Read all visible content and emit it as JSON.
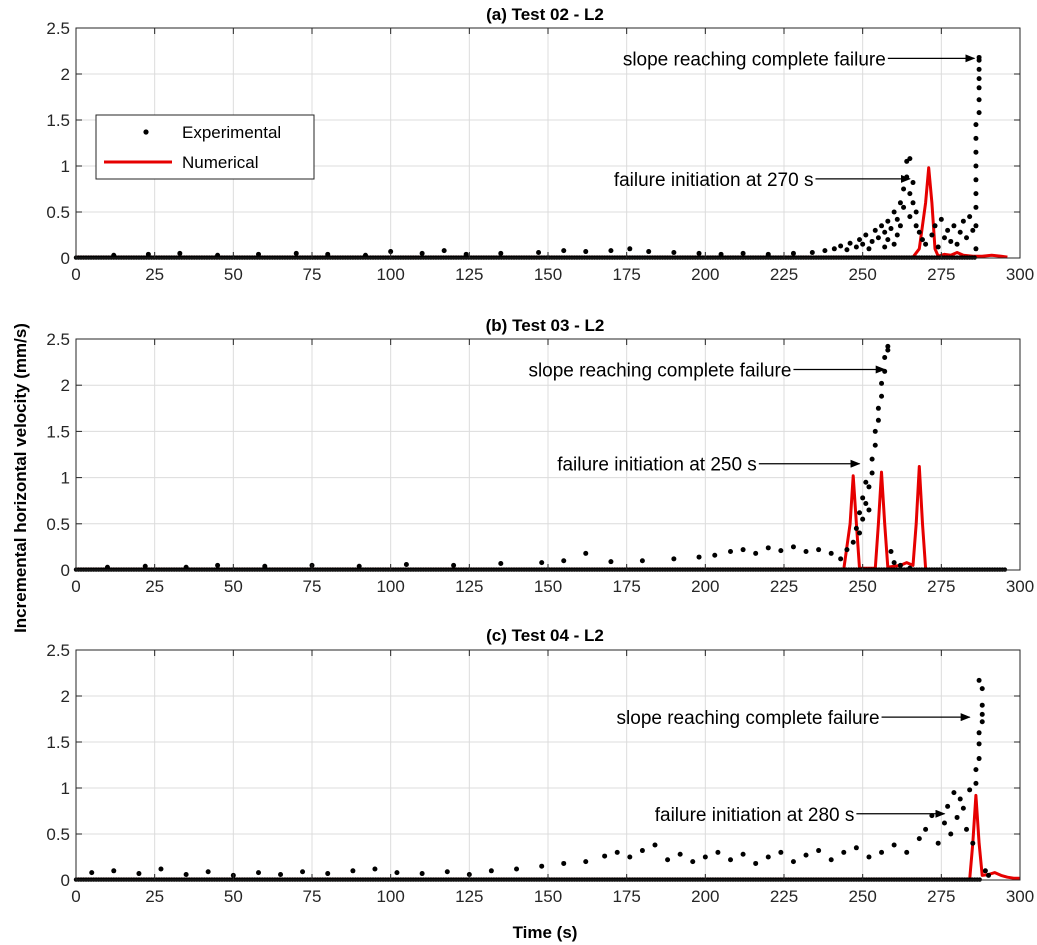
{
  "figure": {
    "ylabel": "Incremental horizontal velocity (mm/s)",
    "xlabel": "Time (s)"
  },
  "legend": {
    "experimental": "Experimental",
    "numerical": "Numerical",
    "placement": "upper-left of panel (a)"
  },
  "colors": {
    "experimental": "#000000",
    "numerical": "#e60000",
    "grid": "#dcdcdc"
  },
  "chart_data": [
    {
      "type": "scatter+line",
      "title": "(a) Test 02 - L2",
      "xlim": [
        0,
        300
      ],
      "ylim": [
        0,
        2.5
      ],
      "xticks": [
        0,
        25,
        50,
        75,
        100,
        125,
        150,
        175,
        200,
        225,
        250,
        275,
        300
      ],
      "yticks": [
        0,
        0.5,
        1,
        1.5,
        2,
        2.5
      ],
      "grid": true,
      "experimental_baseline_end": 286,
      "experimental_points": [
        [
          12,
          0.03
        ],
        [
          23,
          0.04
        ],
        [
          33,
          0.05
        ],
        [
          45,
          0.03
        ],
        [
          58,
          0.04
        ],
        [
          70,
          0.05
        ],
        [
          80,
          0.04
        ],
        [
          92,
          0.03
        ],
        [
          100,
          0.07
        ],
        [
          110,
          0.05
        ],
        [
          117,
          0.08
        ],
        [
          124,
          0.04
        ],
        [
          135,
          0.05
        ],
        [
          147,
          0.06
        ],
        [
          155,
          0.08
        ],
        [
          162,
          0.07
        ],
        [
          170,
          0.08
        ],
        [
          176,
          0.1
        ],
        [
          182,
          0.07
        ],
        [
          190,
          0.06
        ],
        [
          198,
          0.05
        ],
        [
          205,
          0.04
        ],
        [
          212,
          0.05
        ],
        [
          220,
          0.04
        ],
        [
          228,
          0.05
        ],
        [
          234,
          0.06
        ],
        [
          238,
          0.08
        ],
        [
          241,
          0.1
        ],
        [
          243,
          0.13
        ],
        [
          245,
          0.09
        ],
        [
          246,
          0.16
        ],
        [
          248,
          0.12
        ],
        [
          249,
          0.2
        ],
        [
          250,
          0.15
        ],
        [
          251,
          0.25
        ],
        [
          252,
          0.1
        ],
        [
          253,
          0.18
        ],
        [
          254,
          0.3
        ],
        [
          255,
          0.22
        ],
        [
          256,
          0.35
        ],
        [
          257,
          0.12
        ],
        [
          257,
          0.28
        ],
        [
          258,
          0.2
        ],
        [
          258,
          0.4
        ],
        [
          259,
          0.32
        ],
        [
          260,
          0.15
        ],
        [
          260,
          0.5
        ],
        [
          261,
          0.42
        ],
        [
          261,
          0.25
        ],
        [
          262,
          0.6
        ],
        [
          262,
          0.35
        ],
        [
          263,
          0.75
        ],
        [
          263,
          0.55
        ],
        [
          264,
          0.88
        ],
        [
          264,
          1.05
        ],
        [
          265,
          1.08
        ],
        [
          265,
          0.7
        ],
        [
          265,
          0.45
        ],
        [
          266,
          0.82
        ],
        [
          266,
          0.6
        ],
        [
          267,
          0.5
        ],
        [
          267,
          0.35
        ],
        [
          268,
          0.28
        ],
        [
          269,
          0.2
        ],
        [
          270,
          0.15
        ],
        [
          272,
          0.25
        ],
        [
          273,
          0.35
        ],
        [
          274,
          0.12
        ],
        [
          275,
          0.42
        ],
        [
          276,
          0.22
        ],
        [
          277,
          0.3
        ],
        [
          278,
          0.18
        ],
        [
          279,
          0.35
        ],
        [
          280,
          0.15
        ],
        [
          281,
          0.28
        ],
        [
          282,
          0.4
        ],
        [
          283,
          0.22
        ],
        [
          284,
          0.45
        ],
        [
          285,
          0.3
        ],
        [
          286,
          0.1
        ],
        [
          286,
          0.35
        ],
        [
          286,
          0.55
        ],
        [
          286,
          0.7
        ],
        [
          286,
          0.85
        ],
        [
          286,
          1.0
        ],
        [
          286,
          1.15
        ],
        [
          286,
          1.3
        ],
        [
          286,
          1.45
        ],
        [
          287,
          1.58
        ],
        [
          287,
          1.72
        ],
        [
          287,
          1.85
        ],
        [
          287,
          1.95
        ],
        [
          287,
          2.05
        ],
        [
          287,
          2.15
        ],
        [
          287,
          2.18
        ]
      ],
      "numerical_line": [
        [
          0,
          0.01
        ],
        [
          266,
          0.01
        ],
        [
          268,
          0.1
        ],
        [
          270,
          0.6
        ],
        [
          271,
          0.98
        ],
        [
          272,
          0.6
        ],
        [
          273,
          0.1
        ],
        [
          274,
          0.02
        ],
        [
          276,
          0.04
        ],
        [
          278,
          0.03
        ],
        [
          280,
          0.06
        ],
        [
          282,
          0.03
        ],
        [
          285,
          0.02
        ],
        [
          288,
          0.02
        ],
        [
          291,
          0.03
        ],
        [
          294,
          0.02
        ],
        [
          296,
          0.01
        ]
      ],
      "annotations": [
        {
          "text": "slope reaching complete failure",
          "arrow_from": [
            258,
            2.17
          ],
          "arrow_to": [
            285.5,
            2.17
          ]
        },
        {
          "text": "failure initiation at 270 s",
          "arrow_from": [
            235,
            0.86
          ],
          "arrow_to": [
            265,
            0.86
          ]
        }
      ]
    },
    {
      "type": "scatter+line",
      "title": "(b) Test 03 - L2",
      "xlim": [
        0,
        300
      ],
      "ylim": [
        0,
        2.5
      ],
      "xticks": [
        0,
        25,
        50,
        75,
        100,
        125,
        150,
        175,
        200,
        225,
        250,
        275,
        300
      ],
      "yticks": [
        0,
        0.5,
        1,
        1.5,
        2,
        2.5
      ],
      "grid": true,
      "experimental_baseline_end": 296,
      "experimental_points": [
        [
          10,
          0.03
        ],
        [
          22,
          0.04
        ],
        [
          35,
          0.03
        ],
        [
          45,
          0.05
        ],
        [
          60,
          0.04
        ],
        [
          75,
          0.05
        ],
        [
          90,
          0.04
        ],
        [
          105,
          0.06
        ],
        [
          120,
          0.05
        ],
        [
          135,
          0.07
        ],
        [
          148,
          0.08
        ],
        [
          155,
          0.1
        ],
        [
          162,
          0.18
        ],
        [
          170,
          0.09
        ],
        [
          180,
          0.1
        ],
        [
          190,
          0.12
        ],
        [
          198,
          0.14
        ],
        [
          203,
          0.16
        ],
        [
          208,
          0.2
        ],
        [
          212,
          0.22
        ],
        [
          216,
          0.18
        ],
        [
          220,
          0.24
        ],
        [
          224,
          0.21
        ],
        [
          228,
          0.25
        ],
        [
          232,
          0.2
        ],
        [
          236,
          0.22
        ],
        [
          240,
          0.18
        ],
        [
          243,
          0.12
        ],
        [
          245,
          0.22
        ],
        [
          247,
          0.3
        ],
        [
          248,
          0.45
        ],
        [
          249,
          0.4
        ],
        [
          249,
          0.62
        ],
        [
          250,
          0.55
        ],
        [
          250,
          0.78
        ],
        [
          251,
          0.72
        ],
        [
          251,
          0.95
        ],
        [
          252,
          0.9
        ],
        [
          252,
          0.65
        ],
        [
          253,
          1.05
        ],
        [
          253,
          1.2
        ],
        [
          254,
          1.35
        ],
        [
          254,
          1.5
        ],
        [
          255,
          1.62
        ],
        [
          255,
          1.75
        ],
        [
          256,
          1.88
        ],
        [
          256,
          2.02
        ],
        [
          257,
          2.15
        ],
        [
          257,
          2.3
        ],
        [
          258,
          2.38
        ],
        [
          258,
          2.42
        ],
        [
          259,
          0.2
        ],
        [
          260,
          0.08
        ],
        [
          262,
          0.05
        ],
        [
          265,
          0.02
        ]
      ],
      "numerical_line": [
        [
          0,
          0.01
        ],
        [
          244,
          0.01
        ],
        [
          246,
          0.5
        ],
        [
          247,
          1.02
        ],
        [
          248,
          0.5
        ],
        [
          249,
          0.02
        ],
        [
          254,
          0.02
        ],
        [
          255,
          0.5
        ],
        [
          256,
          1.06
        ],
        [
          257,
          0.5
        ],
        [
          258,
          0.03
        ],
        [
          262,
          0.05
        ],
        [
          264,
          0.08
        ],
        [
          266,
          0.05
        ],
        [
          267,
          0.5
        ],
        [
          268,
          1.12
        ],
        [
          269,
          0.5
        ],
        [
          270,
          0.02
        ]
      ],
      "annotations": [
        {
          "text": "slope reaching complete failure",
          "arrow_from": [
            228,
            2.17
          ],
          "arrow_to": [
            257,
            2.17
          ]
        },
        {
          "text": "failure initiation at 250 s",
          "arrow_from": [
            217,
            1.15
          ],
          "arrow_to": [
            249,
            1.15
          ]
        }
      ]
    },
    {
      "type": "scatter+line",
      "title": "(c) Test 04 - L2",
      "xlim": [
        0,
        300
      ],
      "ylim": [
        0,
        2.5
      ],
      "xticks": [
        0,
        25,
        50,
        75,
        100,
        125,
        150,
        175,
        200,
        225,
        250,
        275,
        300
      ],
      "yticks": [
        0,
        0.5,
        1,
        1.5,
        2,
        2.5
      ],
      "grid": true,
      "experimental_baseline_end": 288,
      "experimental_points": [
        [
          5,
          0.08
        ],
        [
          12,
          0.1
        ],
        [
          20,
          0.07
        ],
        [
          27,
          0.12
        ],
        [
          35,
          0.06
        ],
        [
          42,
          0.09
        ],
        [
          50,
          0.05
        ],
        [
          58,
          0.08
        ],
        [
          65,
          0.06
        ],
        [
          72,
          0.09
        ],
        [
          80,
          0.07
        ],
        [
          88,
          0.1
        ],
        [
          95,
          0.12
        ],
        [
          102,
          0.08
        ],
        [
          110,
          0.07
        ],
        [
          118,
          0.09
        ],
        [
          125,
          0.06
        ],
        [
          132,
          0.1
        ],
        [
          140,
          0.12
        ],
        [
          148,
          0.15
        ],
        [
          155,
          0.18
        ],
        [
          162,
          0.2
        ],
        [
          168,
          0.26
        ],
        [
          172,
          0.3
        ],
        [
          176,
          0.25
        ],
        [
          180,
          0.32
        ],
        [
          184,
          0.38
        ],
        [
          188,
          0.22
        ],
        [
          192,
          0.28
        ],
        [
          196,
          0.2
        ],
        [
          200,
          0.25
        ],
        [
          204,
          0.3
        ],
        [
          208,
          0.22
        ],
        [
          212,
          0.28
        ],
        [
          216,
          0.18
        ],
        [
          220,
          0.25
        ],
        [
          224,
          0.3
        ],
        [
          228,
          0.2
        ],
        [
          232,
          0.27
        ],
        [
          236,
          0.32
        ],
        [
          240,
          0.22
        ],
        [
          244,
          0.3
        ],
        [
          248,
          0.35
        ],
        [
          252,
          0.25
        ],
        [
          256,
          0.3
        ],
        [
          260,
          0.38
        ],
        [
          264,
          0.3
        ],
        [
          268,
          0.45
        ],
        [
          270,
          0.55
        ],
        [
          272,
          0.7
        ],
        [
          274,
          0.4
        ],
        [
          276,
          0.62
        ],
        [
          277,
          0.8
        ],
        [
          278,
          0.5
        ],
        [
          279,
          0.95
        ],
        [
          280,
          0.68
        ],
        [
          281,
          0.88
        ],
        [
          282,
          0.78
        ],
        [
          283,
          0.55
        ],
        [
          284,
          0.98
        ],
        [
          285,
          0.4
        ],
        [
          286,
          1.05
        ],
        [
          286,
          1.2
        ],
        [
          287,
          1.32
        ],
        [
          287,
          1.48
        ],
        [
          287,
          1.6
        ],
        [
          288,
          1.72
        ],
        [
          288,
          1.8
        ],
        [
          288,
          1.9
        ],
        [
          288,
          2.08
        ],
        [
          287,
          2.17
        ],
        [
          289,
          0.1
        ],
        [
          290,
          0.05
        ]
      ],
      "numerical_line": [
        [
          0,
          0.01
        ],
        [
          284,
          0.01
        ],
        [
          285,
          0.4
        ],
        [
          286,
          0.92
        ],
        [
          287,
          0.4
        ],
        [
          288,
          0.05
        ],
        [
          290,
          0.06
        ],
        [
          292,
          0.08
        ],
        [
          294,
          0.05
        ],
        [
          296,
          0.03
        ],
        [
          298,
          0.02
        ],
        [
          300,
          0.02
        ]
      ],
      "annotations": [
        {
          "text": "slope reaching complete failure",
          "arrow_from": [
            256,
            1.77
          ],
          "arrow_to": [
            284,
            1.77
          ]
        },
        {
          "text": "failure initiation at 280 s",
          "arrow_from": [
            248,
            0.72
          ],
          "arrow_to": [
            276,
            0.72
          ]
        }
      ]
    }
  ]
}
